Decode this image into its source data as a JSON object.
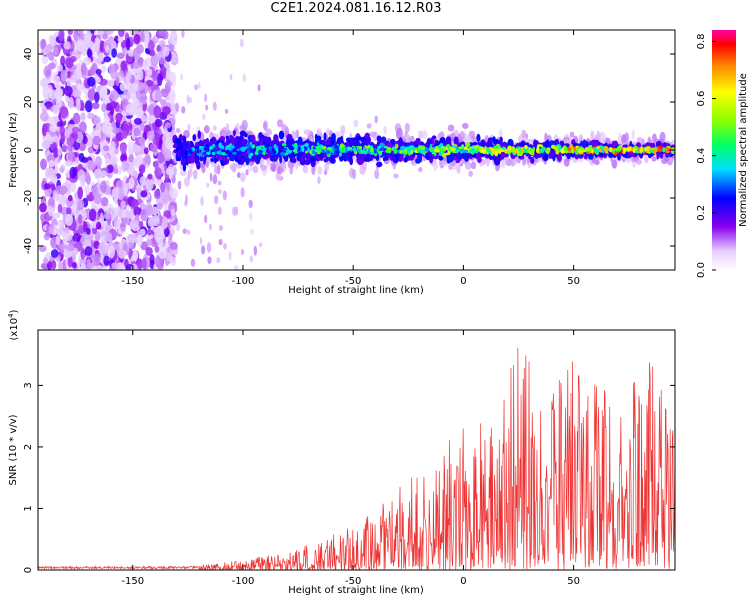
{
  "title": "C2E1.2024.081.16.12.R03",
  "spectrogram": {
    "xlabel": "Height of straight line (km)",
    "ylabel": "Frequency (Hz)",
    "xlim": [
      -193,
      96
    ],
    "ylim": [
      -50,
      50
    ],
    "xticks": [
      -150,
      -100,
      -50,
      0,
      50
    ],
    "yticks": [
      -40,
      -20,
      0,
      20,
      40
    ],
    "colorbar": {
      "label": "Normalized spectral amplitude",
      "range": [
        0,
        0.84
      ],
      "ticks": [
        "0.0",
        "0.2",
        "0.4",
        "0.6",
        "0.8"
      ]
    }
  },
  "chart_data": [
    {
      "type": "heatmap",
      "name": "spectrogram",
      "xlabel": "Height of straight line (km)",
      "ylabel": "Frequency (Hz)",
      "xlim": [
        -193,
        96
      ],
      "ylim": [
        -50,
        50
      ],
      "colorbar_label": "Normalized spectral amplitude",
      "colorbar_range": [
        0,
        0.84
      ],
      "description_points": [
        {
          "x": -180,
          "freq_spread": 50,
          "amplitude": 0.08
        },
        {
          "x": -140,
          "freq_spread": 50,
          "amplitude": 0.1
        },
        {
          "x": -128,
          "freq_spread": 8,
          "amplitude": 0.3
        },
        {
          "x": -100,
          "freq_spread": 9,
          "amplitude": 0.3
        },
        {
          "x": -50,
          "freq_spread": 7,
          "amplitude": 0.35
        },
        {
          "x": 0,
          "freq_spread": 5,
          "amplitude": 0.45
        },
        {
          "x": 50,
          "freq_spread": 4,
          "amplitude": 0.6
        },
        {
          "x": 90,
          "freq_spread": 3,
          "amplitude": 0.75
        }
      ]
    },
    {
      "type": "line",
      "name": "snr",
      "xlabel": "Height of straight line (km)",
      "ylabel": "SNR (10 * v/v)",
      "multiplier_label": "(x10",
      "multiplier_exp": "4",
      "multiplier_close": ")",
      "xlim": [
        -193,
        96
      ],
      "ylim": [
        0,
        3.9
      ],
      "xticks": [
        -150,
        -100,
        -50,
        0,
        50
      ],
      "yticks": [
        0,
        1,
        2,
        3
      ],
      "color": "#ee3333",
      "envelope": [
        {
          "x": -193,
          "y": 0.05
        },
        {
          "x": -150,
          "y": 0.05
        },
        {
          "x": -120,
          "y": 0.08
        },
        {
          "x": -100,
          "y": 0.17
        },
        {
          "x": -80,
          "y": 0.28
        },
        {
          "x": -60,
          "y": 0.55
        },
        {
          "x": -40,
          "y": 1.0
        },
        {
          "x": -20,
          "y": 1.7
        },
        {
          "x": 0,
          "y": 2.3
        },
        {
          "x": 15,
          "y": 2.6
        },
        {
          "x": 27,
          "y": 3.85
        },
        {
          "x": 40,
          "y": 2.9
        },
        {
          "x": 51,
          "y": 3.8
        },
        {
          "x": 70,
          "y": 2.7
        },
        {
          "x": 85,
          "y": 3.4
        },
        {
          "x": 96,
          "y": 2.3
        }
      ]
    }
  ]
}
